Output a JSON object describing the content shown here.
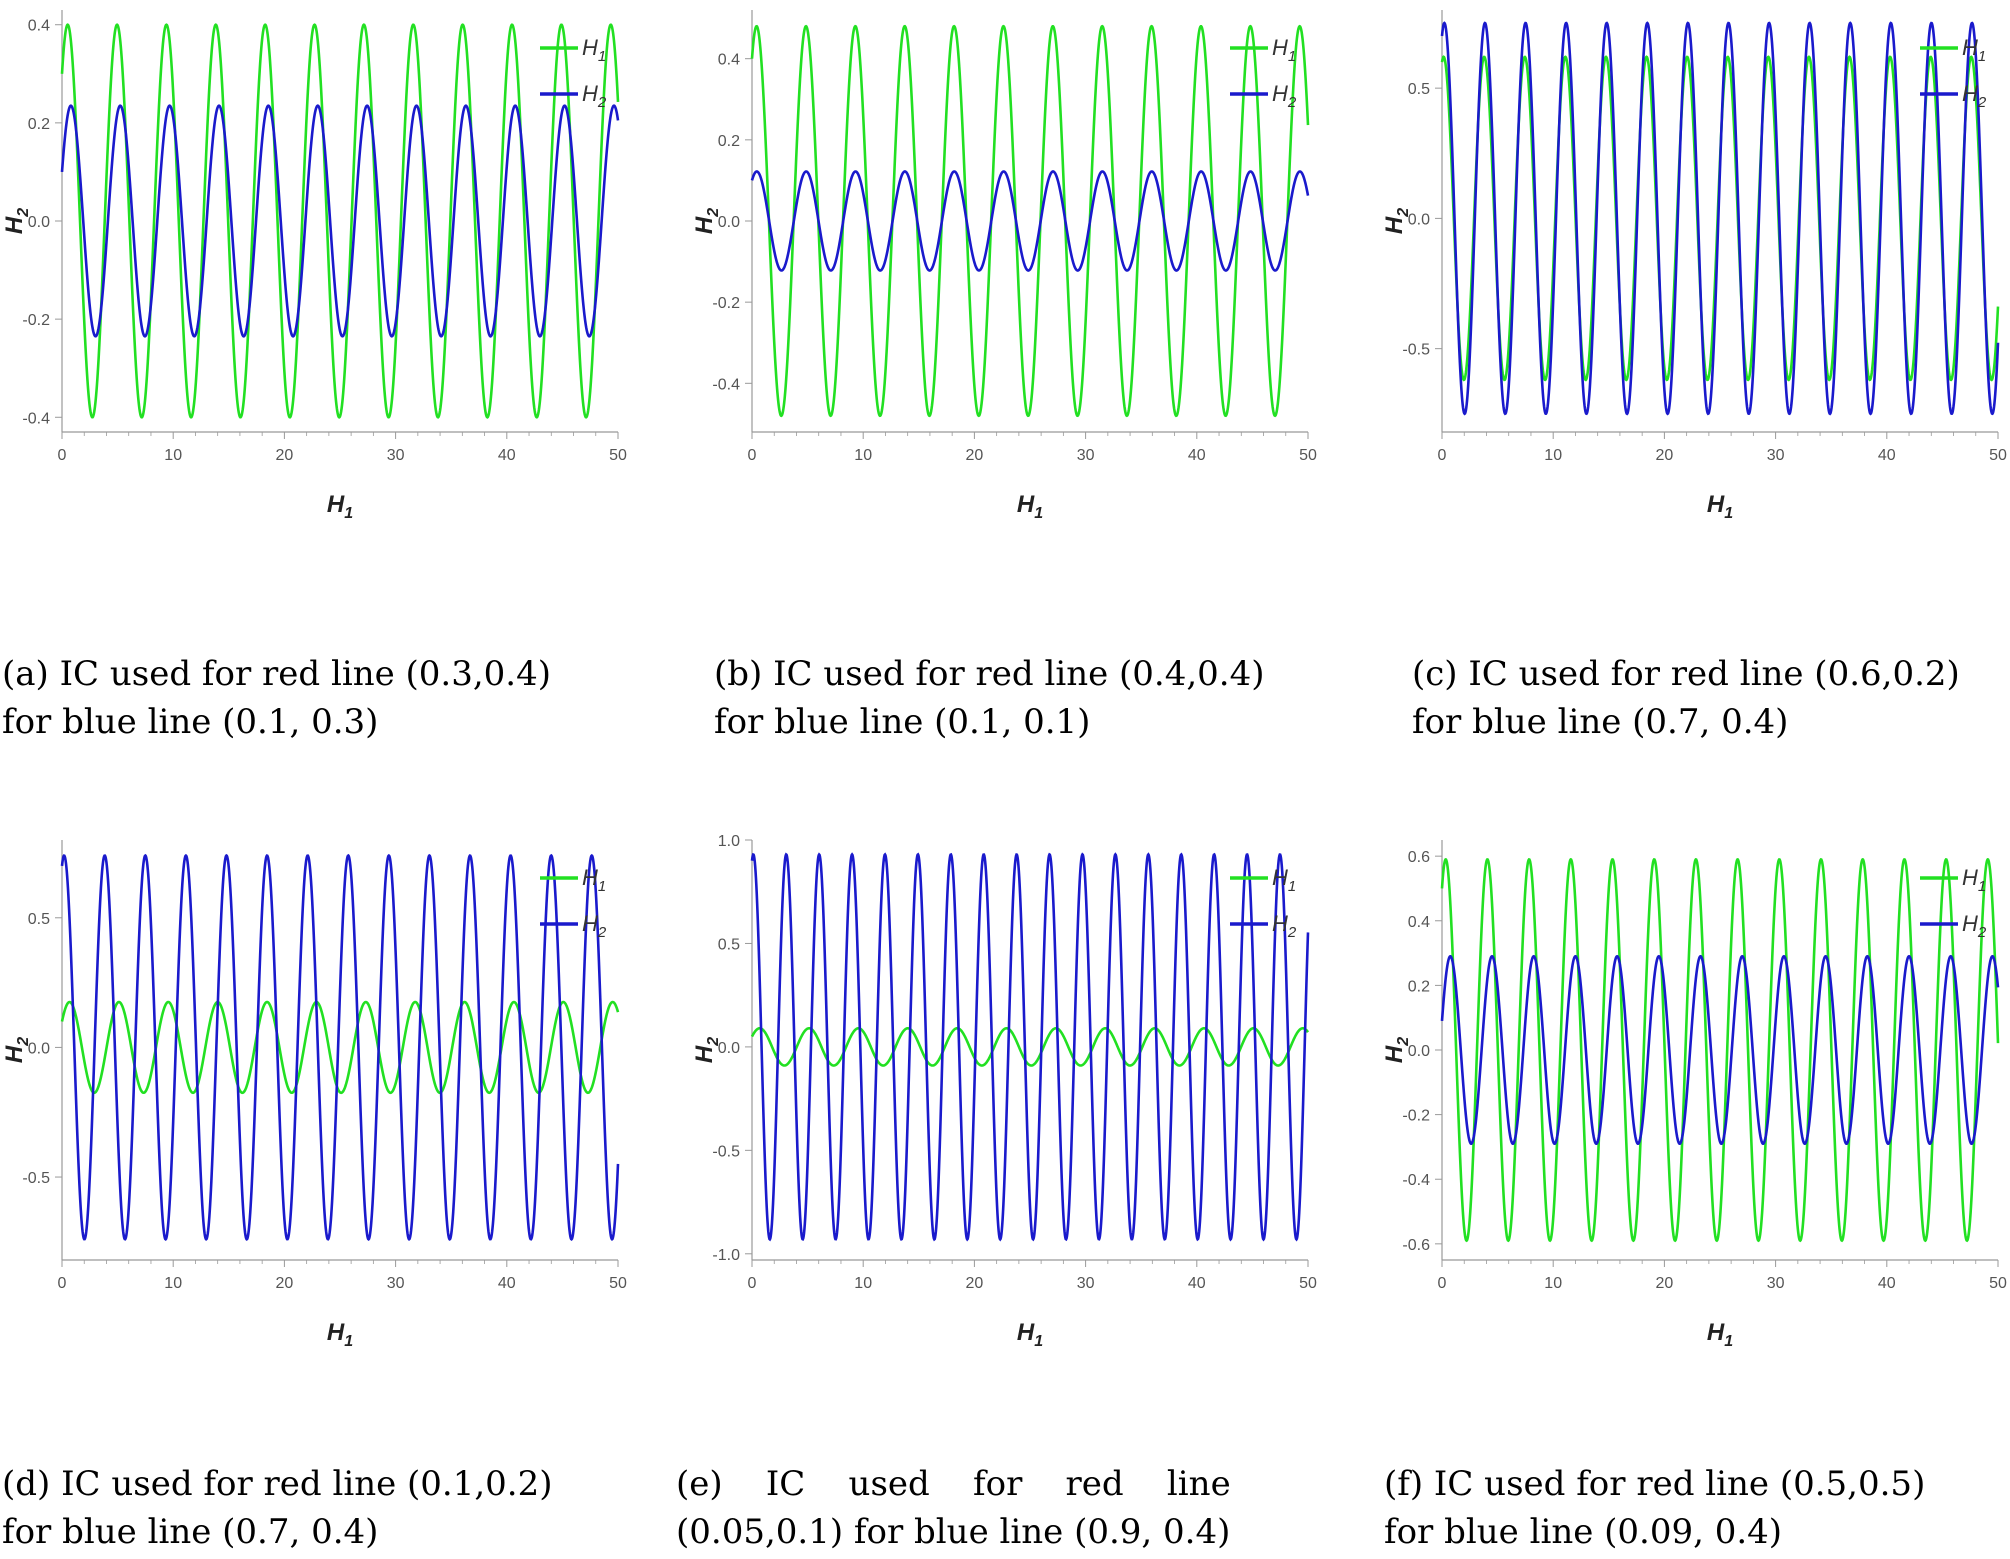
{
  "colors": {
    "h1": "#22e022",
    "h2": "#1a1acc",
    "axis": "#999999"
  },
  "chart_data": [
    {
      "id": "a",
      "type": "line",
      "xlabel": "H1",
      "ylabel": "H2",
      "xlim": [
        0,
        50
      ],
      "ylim": [
        -0.43,
        0.43
      ],
      "xticks": [
        0,
        10,
        20,
        30,
        40,
        50
      ],
      "yticks": [
        -0.4,
        -0.2,
        0.0,
        0.2,
        0.4
      ],
      "ytick_labels": [
        "-0.4",
        "-0.2",
        "0.0",
        "0.2",
        "0.4"
      ],
      "legend": [
        "H1",
        "H2"
      ],
      "legend_position": "top-right",
      "series": [
        {
          "name": "H1",
          "color": "#22e022",
          "amplitude": 0.4,
          "initial": 0.3,
          "period": 4.44
        },
        {
          "name": "H2",
          "color": "#1a1acc",
          "amplitude": 0.235,
          "initial": 0.1,
          "period": 4.44
        }
      ],
      "caption_lines": [
        "(a) IC used for red line (0.3,0.4)",
        "for blue line (0.1, 0.3)"
      ]
    },
    {
      "id": "b",
      "type": "line",
      "xlabel": "H1",
      "ylabel": "H2",
      "xlim": [
        0,
        50
      ],
      "ylim": [
        -0.52,
        0.52
      ],
      "xticks": [
        0,
        10,
        20,
        30,
        40,
        50
      ],
      "yticks": [
        -0.4,
        -0.2,
        0.0,
        0.2,
        0.4
      ],
      "ytick_labels": [
        "-0.4",
        "-0.2",
        "0.0",
        "0.2",
        "0.4"
      ],
      "legend": [
        "H1",
        "H2"
      ],
      "legend_position": "top-right",
      "series": [
        {
          "name": "H1",
          "color": "#22e022",
          "amplitude": 0.48,
          "initial": 0.4,
          "period": 4.44
        },
        {
          "name": "H2",
          "color": "#1a1acc",
          "amplitude": 0.122,
          "initial": 0.1,
          "period": 4.44
        }
      ],
      "caption_lines": [
        "(b) IC used for red line (0.4,0.4)",
        "for blue line (0.1, 0.1)"
      ]
    },
    {
      "id": "c",
      "type": "line",
      "xlabel": "H1",
      "ylabel": "H2",
      "xlim": [
        0,
        50
      ],
      "ylim": [
        -0.82,
        0.8
      ],
      "xticks": [
        0,
        10,
        20,
        30,
        40,
        50
      ],
      "yticks": [
        -0.5,
        0.0,
        0.5
      ],
      "ytick_labels": [
        "-0.5",
        "0.0",
        "0.5"
      ],
      "legend": [
        "H1",
        "H2"
      ],
      "legend_position": "top-right",
      "series": [
        {
          "name": "H1",
          "color": "#22e022",
          "amplitude": 0.62,
          "initial": 0.6,
          "period": 3.65
        },
        {
          "name": "H2",
          "color": "#1a1acc",
          "amplitude": 0.75,
          "initial": 0.7,
          "period": 3.65
        }
      ],
      "caption_lines": [
        "(c) IC used for red line (0.6,0.2)",
        "for blue line (0.7, 0.4)"
      ]
    },
    {
      "id": "d",
      "type": "line",
      "xlabel": "H1",
      "ylabel": "H2",
      "xlim": [
        0,
        50
      ],
      "ylim": [
        -0.82,
        0.8
      ],
      "xticks": [
        0,
        10,
        20,
        30,
        40,
        50
      ],
      "yticks": [
        -0.5,
        0.0,
        0.5
      ],
      "ytick_labels": [
        "-0.5",
        "0.0",
        "0.5"
      ],
      "legend": [
        "H1",
        "H2"
      ],
      "legend_position": "top-right",
      "series": [
        {
          "name": "H1",
          "color": "#22e022",
          "amplitude": 0.175,
          "initial": 0.1,
          "period": 4.44
        },
        {
          "name": "H2",
          "color": "#1a1acc",
          "amplitude": 0.74,
          "initial": 0.7,
          "period": 3.65
        }
      ],
      "caption_lines": [
        "(d) IC used for red line (0.1,0.2)",
        "for blue line (0.7, 0.4)"
      ]
    },
    {
      "id": "e",
      "type": "line",
      "xlabel": "H1",
      "ylabel": "H2",
      "xlim": [
        0,
        50
      ],
      "ylim": [
        -1.03,
        1.0
      ],
      "xticks": [
        0,
        10,
        20,
        30,
        40,
        50
      ],
      "yticks": [
        -1.0,
        -0.5,
        0.0,
        0.5,
        1.0
      ],
      "ytick_labels": [
        "-1.0",
        "-0.5",
        "0.0",
        "0.5",
        "1.0"
      ],
      "legend": [
        "H1",
        "H2"
      ],
      "legend_position": "top-right",
      "series": [
        {
          "name": "H1",
          "color": "#22e022",
          "amplitude": 0.09,
          "initial": 0.05,
          "period": 4.44
        },
        {
          "name": "H2",
          "color": "#1a1acc",
          "amplitude": 0.93,
          "initial": 0.9,
          "period": 2.96
        }
      ],
      "caption_lines": [
        "(e)    IC    used    for    red    line",
        "(0.05,0.1) for blue line (0.9, 0.4)"
      ]
    },
    {
      "id": "f",
      "type": "line",
      "xlabel": "H1",
      "ylabel": "H2",
      "xlim": [
        0,
        50
      ],
      "ylim": [
        -0.65,
        0.65
      ],
      "xticks": [
        0,
        10,
        20,
        30,
        40,
        50
      ],
      "yticks": [
        -0.6,
        -0.4,
        -0.2,
        0.0,
        0.2,
        0.4,
        0.6
      ],
      "ytick_labels": [
        "-0.6",
        "-0.4",
        "-0.2",
        "0.0",
        "0.2",
        "0.4",
        "0.6"
      ],
      "legend": [
        "H1",
        "H2"
      ],
      "legend_position": "top-right",
      "series": [
        {
          "name": "H1",
          "color": "#22e022",
          "amplitude": 0.59,
          "initial": 0.5,
          "period": 3.75
        },
        {
          "name": "H2",
          "color": "#1a1acc",
          "amplitude": 0.29,
          "initial": 0.09,
          "period": 3.75
        }
      ],
      "caption_lines": [
        "(f) IC used for red line (0.5,0.5)",
        "for blue line (0.09, 0.4)"
      ]
    }
  ]
}
